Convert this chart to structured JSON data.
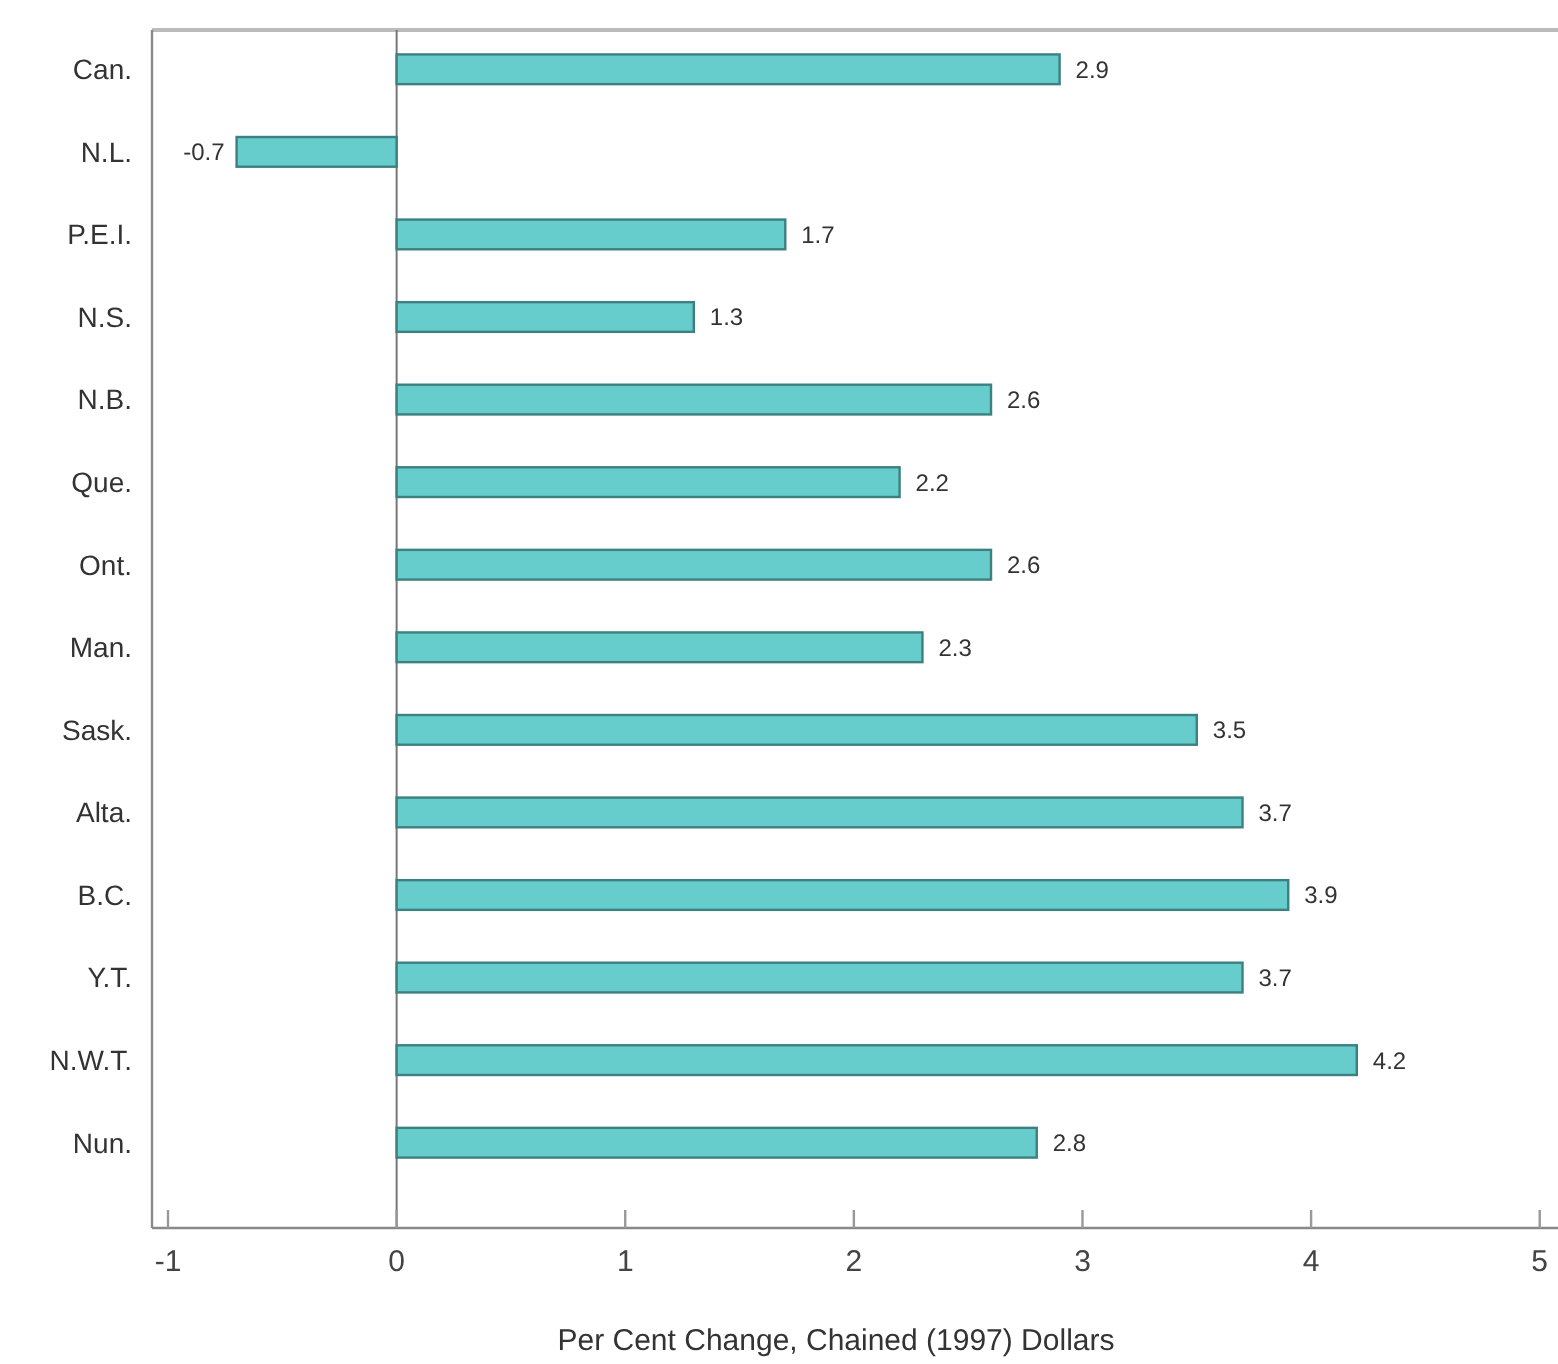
{
  "chart_data": {
    "type": "bar",
    "orientation": "horizontal",
    "xlabel": "Per Cent Change, Chained (1997) Dollars",
    "categories": [
      "Can.",
      "N.L.",
      "P.E.I.",
      "N.S.",
      "N.B.",
      "Que.",
      "Ont.",
      "Man.",
      "Sask.",
      "Alta.",
      "B.C.",
      "Y.T.",
      "N.W.T.",
      "Nun."
    ],
    "values": [
      2.9,
      -0.7,
      1.7,
      1.3,
      2.6,
      2.2,
      2.6,
      2.3,
      3.5,
      3.7,
      3.9,
      3.7,
      4.2,
      2.8
    ],
    "color": "#66cccc",
    "xlim": [
      -1.07,
      5.08
    ],
    "xticks": [
      -1,
      0,
      1,
      2,
      3,
      4,
      5
    ],
    "ref_lines": [
      {
        "axis": "x",
        "value": 0,
        "color": "#777777"
      }
    ],
    "data_labels": true,
    "grid": false
  }
}
